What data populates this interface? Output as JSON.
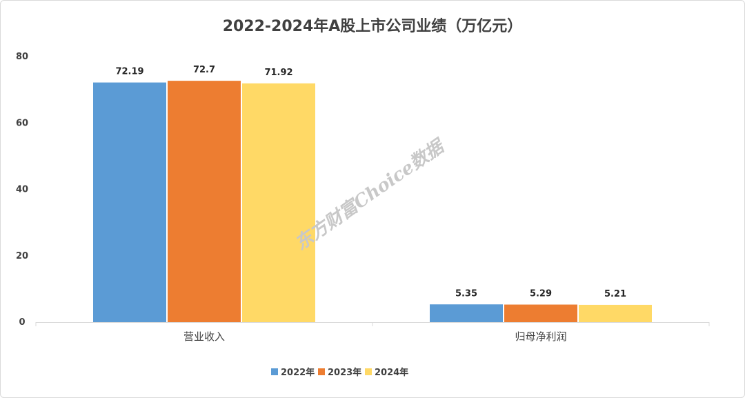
{
  "chart_data": {
    "type": "bar",
    "title": "2022-2024年A股上市公司业绩（万亿元）",
    "categories": [
      "营业收入",
      "归母净利润"
    ],
    "series": [
      {
        "name": "2022年",
        "values": [
          72.19,
          5.35
        ],
        "labels": [
          "72.19",
          "5.35"
        ],
        "color": "#5b9bd5"
      },
      {
        "name": "2023年",
        "values": [
          72.7,
          5.29
        ],
        "labels": [
          "72.7",
          "5.29"
        ],
        "color": "#ed7d31"
      },
      {
        "name": "2024年",
        "values": [
          71.92,
          5.21
        ],
        "labels": [
          "71.92",
          "5.21"
        ],
        "color": "#ffd966"
      }
    ],
    "ylim": [
      0,
      80
    ],
    "yticks": [
      "0",
      "20",
      "40",
      "60",
      "80"
    ],
    "grid": false,
    "legend": "bottom",
    "watermark": "东方财富Choice数据"
  }
}
